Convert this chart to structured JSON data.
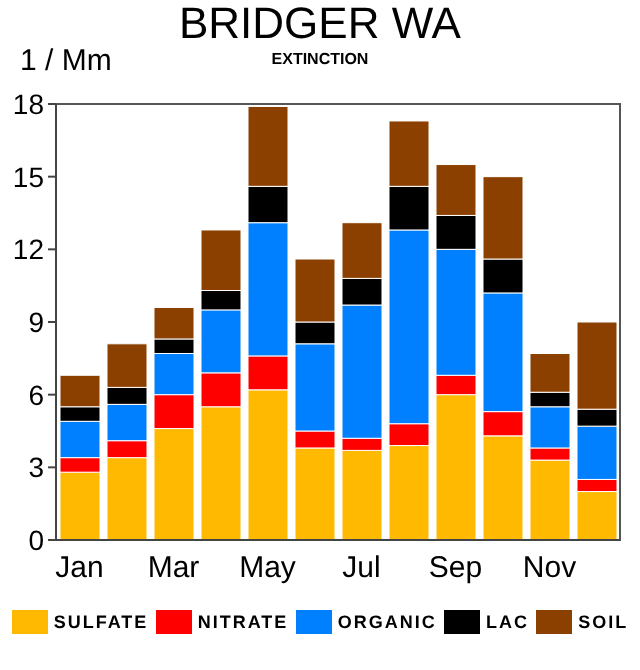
{
  "chart_data": {
    "type": "bar",
    "title": "BRIDGER WA",
    "subtitle": "EXTINCTION",
    "ylabel": "1 / Mm",
    "stacked": true,
    "legend": "bottom",
    "grid": false,
    "categories": [
      "Jan",
      null,
      "Mar",
      null,
      "May",
      null,
      "Jul",
      null,
      "Sep",
      null,
      "Nov",
      null
    ],
    "ylim": [
      0,
      18
    ],
    "yticks": [
      0,
      3,
      6,
      9,
      12,
      15,
      18
    ],
    "series": [
      {
        "name": "SULFATE",
        "color": "#ffb900",
        "values": [
          2.8,
          3.4,
          4.6,
          5.5,
          6.2,
          3.8,
          3.7,
          3.9,
          6.0,
          4.3,
          3.3,
          2.0
        ]
      },
      {
        "name": "NITRATE",
        "color": "#ff0000",
        "values": [
          0.6,
          0.7,
          1.4,
          1.4,
          1.4,
          0.7,
          0.5,
          0.9,
          0.8,
          1.0,
          0.5,
          0.5
        ]
      },
      {
        "name": "ORGANIC",
        "color": "#0080ff",
        "values": [
          1.5,
          1.5,
          1.7,
          2.6,
          5.5,
          3.6,
          5.5,
          8.0,
          5.2,
          4.9,
          1.7,
          2.2
        ]
      },
      {
        "name": "LAC",
        "color": "#000000",
        "values": [
          0.6,
          0.7,
          0.6,
          0.8,
          1.5,
          0.9,
          1.1,
          1.8,
          1.4,
          1.4,
          0.6,
          0.7
        ]
      },
      {
        "name": "SOIL",
        "color": "#8b4000",
        "values": [
          1.3,
          1.8,
          1.3,
          2.5,
          3.3,
          2.6,
          2.3,
          2.7,
          2.1,
          3.4,
          1.6,
          3.6
        ]
      }
    ]
  }
}
